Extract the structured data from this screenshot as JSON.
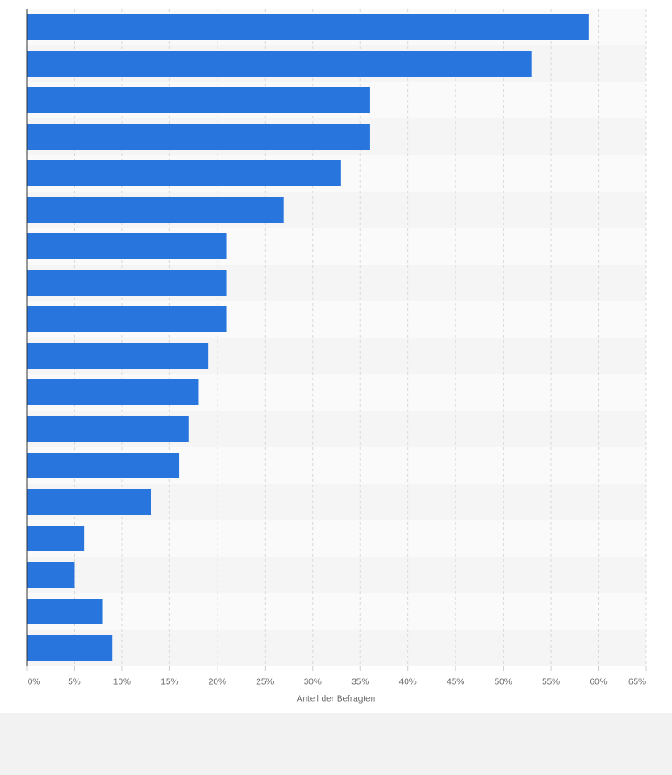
{
  "chart_data": {
    "type": "bar",
    "orientation": "horizontal",
    "values": [
      59,
      53,
      36,
      36,
      33,
      27,
      21,
      21,
      21,
      19,
      18,
      17,
      16,
      13,
      6,
      5,
      8,
      9
    ],
    "color": "#2876dd",
    "xlabel": "Anteil der Befragten",
    "xlim": [
      0,
      65
    ],
    "xticks": [
      {
        "value": 0,
        "label": "0%"
      },
      {
        "value": 5,
        "label": "5%"
      },
      {
        "value": 10,
        "label": "10%"
      },
      {
        "value": 15,
        "label": "15%"
      },
      {
        "value": 20,
        "label": "20%"
      },
      {
        "value": 25,
        "label": "25%"
      },
      {
        "value": 30,
        "label": "30%"
      },
      {
        "value": 35,
        "label": "35%"
      },
      {
        "value": 40,
        "label": "40%"
      },
      {
        "value": 45,
        "label": "45%"
      },
      {
        "value": 50,
        "label": "50%"
      },
      {
        "value": 55,
        "label": "55%"
      },
      {
        "value": 60,
        "label": "60%"
      },
      {
        "value": 65,
        "label": "65%"
      }
    ],
    "grid": true
  }
}
